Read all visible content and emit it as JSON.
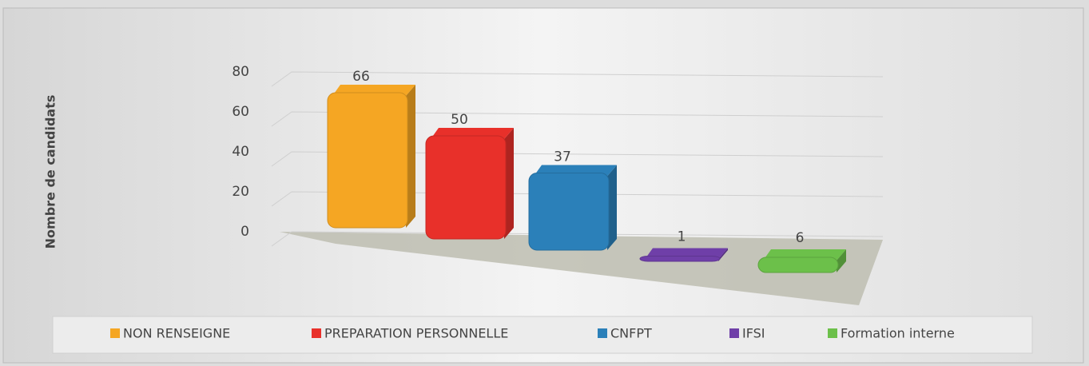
{
  "chart_data": {
    "type": "bar3d",
    "y_label": "Nombre de candidats",
    "categories": [
      "NON RENSEIGNE",
      "PREPARATION PERSONNELLE",
      "CNFPT",
      "IFSI",
      "Formation interne"
    ],
    "values": [
      66,
      50,
      37,
      1,
      6
    ],
    "colors": [
      "#f5a623",
      "#e8302a",
      "#2b80b9",
      "#6f3fa8",
      "#6cc04a"
    ],
    "ylim": [
      0,
      80
    ],
    "yticks": [
      0,
      20,
      40,
      60,
      80
    ],
    "grid": true,
    "legend": "bottom"
  }
}
